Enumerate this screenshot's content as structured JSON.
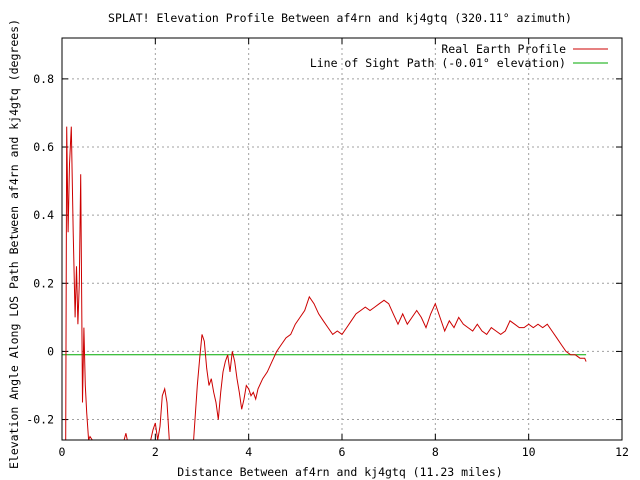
{
  "chart_data": {
    "type": "line",
    "title": "SPLAT! Elevation Profile Between af4rn and kj4gtq (320.11° azimuth)",
    "xlabel": "Distance Between af4rn and kj4gtq (11.23 miles)",
    "ylabel": "Elevation Angle Along LOS Path Between af4rn and kj4gtq (degrees)",
    "xlim": [
      0,
      12
    ],
    "ylim": [
      -0.26,
      0.92
    ],
    "x_ticks": [
      "0",
      "2",
      "4",
      "6",
      "8",
      "10",
      "12"
    ],
    "y_ticks": [
      "-0.2",
      "0",
      "0.2",
      "0.4",
      "0.6",
      "0.8"
    ],
    "x_tick_values": [
      0,
      2,
      4,
      6,
      8,
      10,
      12
    ],
    "y_tick_values": [
      -0.2,
      0,
      0.2,
      0.4,
      0.6,
      0.8
    ],
    "grid": true,
    "legend_position": "top-right",
    "series": [
      {
        "name": "Real Earth Profile",
        "color": "#cc0000",
        "points": [
          [
            0.08,
            -0.26
          ],
          [
            0.1,
            0.66
          ],
          [
            0.13,
            0.35
          ],
          [
            0.16,
            0.55
          ],
          [
            0.2,
            0.66
          ],
          [
            0.24,
            0.35
          ],
          [
            0.28,
            0.1
          ],
          [
            0.31,
            0.25
          ],
          [
            0.34,
            0.08
          ],
          [
            0.37,
            0.2
          ],
          [
            0.4,
            0.52
          ],
          [
            0.44,
            -0.15
          ],
          [
            0.47,
            0.07
          ],
          [
            0.5,
            -0.1
          ],
          [
            0.53,
            -0.18
          ],
          [
            0.57,
            -0.26
          ],
          [
            0.6,
            -0.25
          ],
          [
            0.65,
            -0.26
          ],
          [
            1.33,
            -0.26
          ],
          [
            1.37,
            -0.24
          ],
          [
            1.4,
            -0.26
          ],
          [
            1.9,
            -0.26
          ],
          [
            1.95,
            -0.23
          ],
          [
            2.0,
            -0.21
          ],
          [
            2.05,
            -0.26
          ],
          [
            2.1,
            -0.22
          ],
          [
            2.15,
            -0.13
          ],
          [
            2.2,
            -0.11
          ],
          [
            2.25,
            -0.15
          ],
          [
            2.3,
            -0.26
          ],
          [
            2.82,
            -0.26
          ],
          [
            2.9,
            -0.1
          ],
          [
            2.95,
            -0.02
          ],
          [
            3.0,
            0.05
          ],
          [
            3.05,
            0.03
          ],
          [
            3.1,
            -0.05
          ],
          [
            3.15,
            -0.1
          ],
          [
            3.2,
            -0.08
          ],
          [
            3.25,
            -0.12
          ],
          [
            3.3,
            -0.15
          ],
          [
            3.35,
            -0.2
          ],
          [
            3.4,
            -0.12
          ],
          [
            3.45,
            -0.06
          ],
          [
            3.5,
            -0.03
          ],
          [
            3.55,
            -0.01
          ],
          [
            3.6,
            -0.06
          ],
          [
            3.65,
            0.0
          ],
          [
            3.7,
            -0.03
          ],
          [
            3.75,
            -0.08
          ],
          [
            3.8,
            -0.12
          ],
          [
            3.85,
            -0.17
          ],
          [
            3.9,
            -0.14
          ],
          [
            3.95,
            -0.1
          ],
          [
            4.0,
            -0.11
          ],
          [
            4.05,
            -0.13
          ],
          [
            4.1,
            -0.12
          ],
          [
            4.15,
            -0.14
          ],
          [
            4.2,
            -0.11
          ],
          [
            4.3,
            -0.08
          ],
          [
            4.4,
            -0.06
          ],
          [
            4.5,
            -0.03
          ],
          [
            4.6,
            0.0
          ],
          [
            4.7,
            0.02
          ],
          [
            4.8,
            0.04
          ],
          [
            4.9,
            0.05
          ],
          [
            5.0,
            0.08
          ],
          [
            5.1,
            0.1
          ],
          [
            5.2,
            0.12
          ],
          [
            5.3,
            0.16
          ],
          [
            5.4,
            0.14
          ],
          [
            5.5,
            0.11
          ],
          [
            5.6,
            0.09
          ],
          [
            5.7,
            0.07
          ],
          [
            5.8,
            0.05
          ],
          [
            5.9,
            0.06
          ],
          [
            6.0,
            0.05
          ],
          [
            6.1,
            0.07
          ],
          [
            6.2,
            0.09
          ],
          [
            6.3,
            0.11
          ],
          [
            6.4,
            0.12
          ],
          [
            6.5,
            0.13
          ],
          [
            6.6,
            0.12
          ],
          [
            6.7,
            0.13
          ],
          [
            6.8,
            0.14
          ],
          [
            6.9,
            0.15
          ],
          [
            7.0,
            0.14
          ],
          [
            7.1,
            0.11
          ],
          [
            7.2,
            0.08
          ],
          [
            7.3,
            0.11
          ],
          [
            7.4,
            0.08
          ],
          [
            7.5,
            0.1
          ],
          [
            7.6,
            0.12
          ],
          [
            7.7,
            0.1
          ],
          [
            7.8,
            0.07
          ],
          [
            7.9,
            0.11
          ],
          [
            8.0,
            0.14
          ],
          [
            8.1,
            0.1
          ],
          [
            8.2,
            0.06
          ],
          [
            8.3,
            0.09
          ],
          [
            8.4,
            0.07
          ],
          [
            8.5,
            0.1
          ],
          [
            8.6,
            0.08
          ],
          [
            8.7,
            0.07
          ],
          [
            8.8,
            0.06
          ],
          [
            8.9,
            0.08
          ],
          [
            9.0,
            0.06
          ],
          [
            9.1,
            0.05
          ],
          [
            9.2,
            0.07
          ],
          [
            9.3,
            0.06
          ],
          [
            9.4,
            0.05
          ],
          [
            9.5,
            0.06
          ],
          [
            9.6,
            0.09
          ],
          [
            9.7,
            0.08
          ],
          [
            9.8,
            0.07
          ],
          [
            9.9,
            0.07
          ],
          [
            10.0,
            0.08
          ],
          [
            10.1,
            0.07
          ],
          [
            10.2,
            0.08
          ],
          [
            10.3,
            0.07
          ],
          [
            10.4,
            0.08
          ],
          [
            10.5,
            0.06
          ],
          [
            10.6,
            0.04
          ],
          [
            10.7,
            0.02
          ],
          [
            10.8,
            0.0
          ],
          [
            10.9,
            -0.01
          ],
          [
            11.0,
            -0.01
          ],
          [
            11.1,
            -0.02
          ],
          [
            11.2,
            -0.02
          ],
          [
            11.23,
            -0.03
          ]
        ]
      },
      {
        "name": "Line of Sight Path (-0.01° elevation)",
        "color": "#00aa00",
        "points": [
          [
            0.0,
            -0.01
          ],
          [
            11.23,
            -0.01
          ]
        ]
      }
    ]
  }
}
